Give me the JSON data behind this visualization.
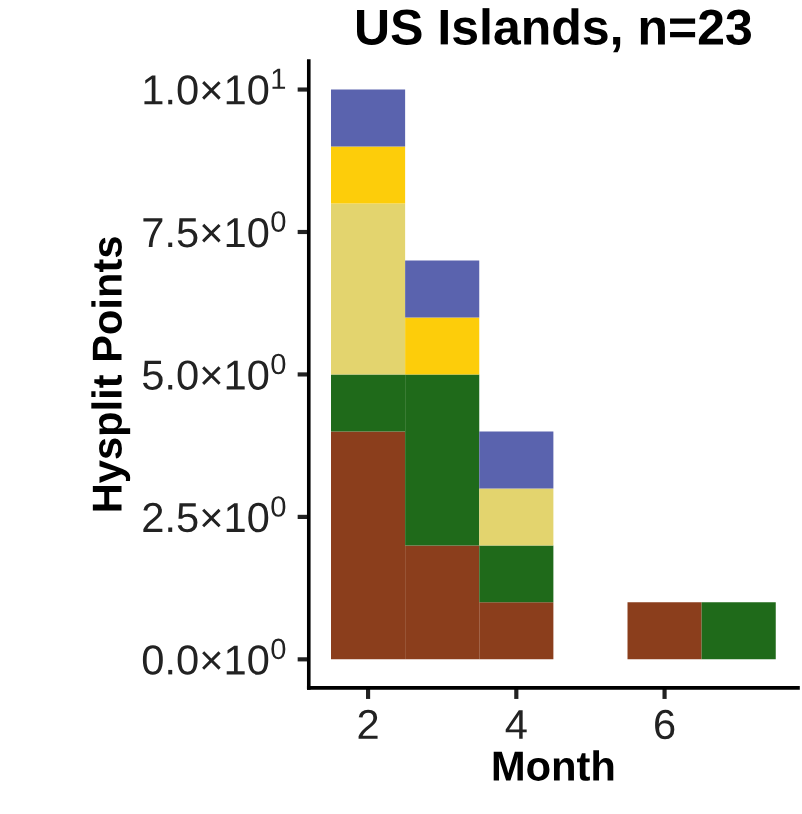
{
  "chart_data": {
    "type": "bar",
    "title": "US Islands, n=23",
    "xlabel": "Month",
    "ylabel": "Hysplit Points",
    "stacked": true,
    "x": [
      2,
      3,
      4,
      6,
      7
    ],
    "series": [
      {
        "color": "#8b3e1c",
        "values": [
          4,
          2,
          1,
          1,
          0
        ]
      },
      {
        "color": "#1f6a1a",
        "values": [
          1,
          3,
          1,
          0,
          1
        ]
      },
      {
        "color": "#e3d46e",
        "values": [
          3,
          0,
          1,
          0,
          0
        ]
      },
      {
        "color": "#fdcd0a",
        "values": [
          1,
          1,
          0,
          0,
          0
        ]
      },
      {
        "color": "#5a63ae",
        "values": [
          1,
          1,
          1,
          0,
          0
        ]
      }
    ],
    "xlim": [
      1.2,
      7.8
    ],
    "xticks": [
      2,
      4,
      6
    ],
    "ylim": [
      -0.5,
      10.5
    ],
    "yticks": [
      {
        "value": 0,
        "label": "0.0×10$^{0}$"
      },
      {
        "value": 2.5,
        "label": "2.5×10$^{0}$"
      },
      {
        "value": 5,
        "label": "5.0×10$^{0}$"
      },
      {
        "value": 7.5,
        "label": "7.5×10$^{0}$"
      },
      {
        "value": 10,
        "label": "1.0×10$^{1}$"
      }
    ],
    "grid": false,
    "legend": false
  }
}
